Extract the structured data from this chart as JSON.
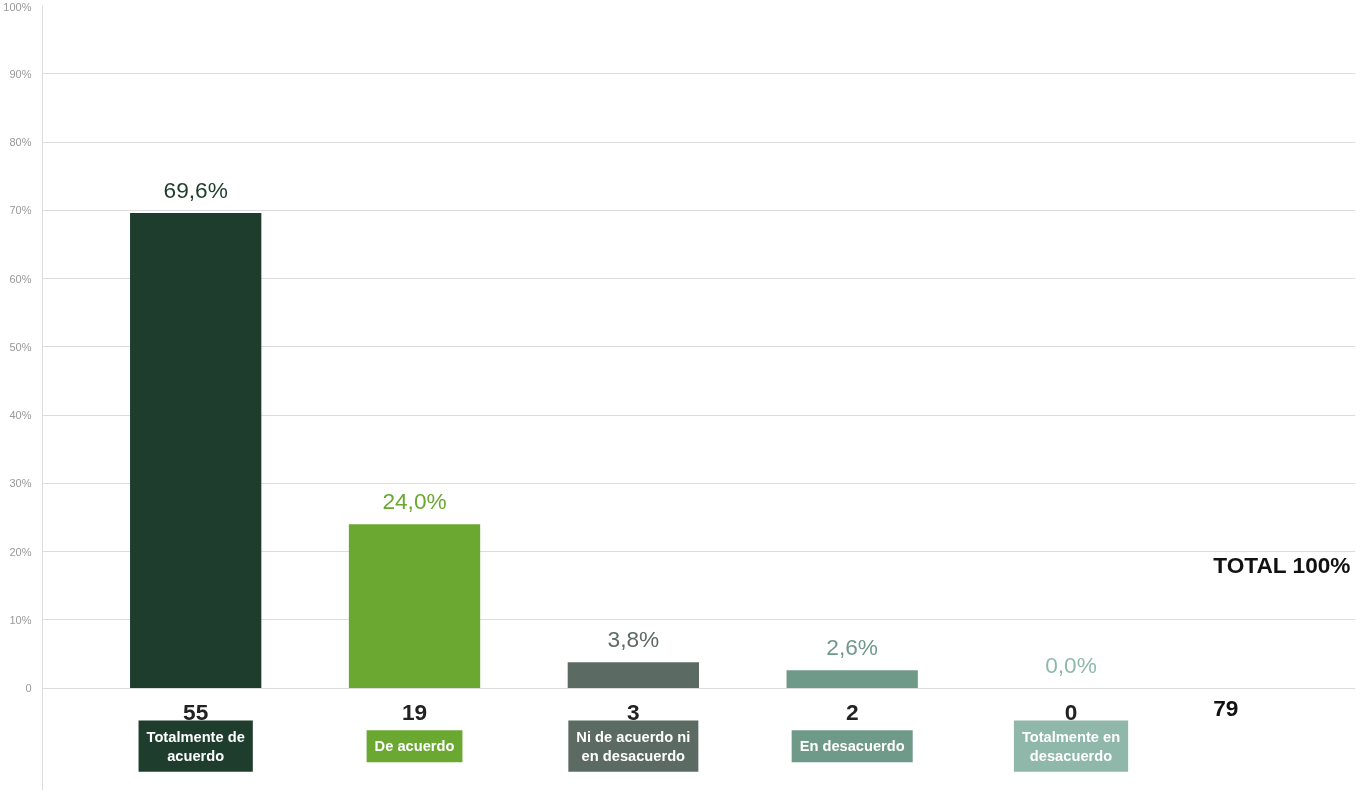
{
  "chart_data": {
    "type": "bar",
    "categories": [
      "Totalmente de acuerdo",
      "De acuerdo",
      "Ni de acuerdo ni en desacuerdo",
      "En desacuerdo",
      "Totalmente en desacuerdo"
    ],
    "values": [
      69.6,
      24.0,
      3.8,
      2.6,
      0.0
    ],
    "colors": [
      "#1e3d2c",
      "#6aa832",
      "#5b6b63",
      "#6f9a8a",
      "#8fb8aa"
    ],
    "value_labels": [
      "69,6%",
      "24,0%",
      "3,8%",
      "2,6%",
      "0,0%"
    ],
    "ylim": [
      -15,
      100
    ],
    "yticks": [
      0,
      {
        "value": 10,
        "label": "10%"
      },
      {
        "value": 20,
        "label": "20%"
      },
      {
        "value": 30,
        "label": "30%"
      },
      {
        "value": 40,
        "label": "40%"
      },
      {
        "value": 50,
        "label": "50%"
      },
      {
        "value": 60,
        "label": "60%"
      },
      {
        "value": 70,
        "label": "70%"
      },
      {
        "value": 80,
        "label": "80%"
      },
      {
        "value": 90,
        "label": "90%"
      },
      {
        "value": 100,
        "label": "100%"
      }
    ],
    "grid": "y",
    "annotations": [
      "55",
      "19",
      "3",
      "2",
      "0",
      "TOTAL 100%",
      "79"
    ]
  }
}
